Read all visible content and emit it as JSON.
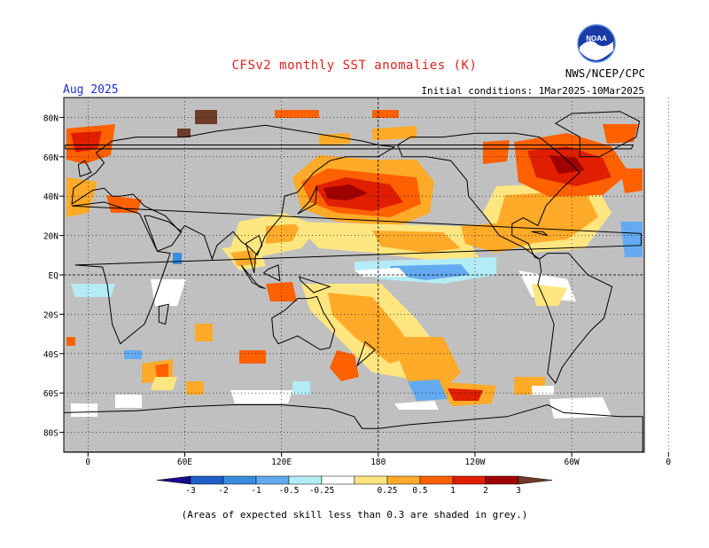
{
  "title": "CFSv2 monthly SST anomalies (K)",
  "organization": "NWS/NCEP/CPC",
  "logo_text": "NOAA",
  "forecast_month": "Aug 2025",
  "initial_conditions": "Initial conditions: 1Mar2025-10Mar2025",
  "footnote": "(Areas of expected skill less than 0.3 are shaded in grey.)",
  "lat_labels": [
    "80N",
    "60N",
    "40N",
    "20N",
    "EQ",
    "20S",
    "40S",
    "60S",
    "80S"
  ],
  "lon_labels": [
    "0",
    "60E",
    "120E",
    "180",
    "120W",
    "60W",
    "0"
  ],
  "colorbar": {
    "ticks": [
      "-3",
      "-2",
      "-1",
      "-0.5",
      "-0.25",
      "0.25",
      "0.5",
      "1",
      "2",
      "3"
    ],
    "colors": [
      "#1a0a8a",
      "#1e5fc8",
      "#3c8ce0",
      "#64aaf0",
      "#b4ecf6",
      "#ffffff",
      "#ffe680",
      "#ffaa28",
      "#ff6000",
      "#e01e00",
      "#a00000",
      "#6e3c28"
    ]
  },
  "colors": {
    "land_skill_grey": "#c0c0c0",
    "coastline": "#000000"
  }
}
